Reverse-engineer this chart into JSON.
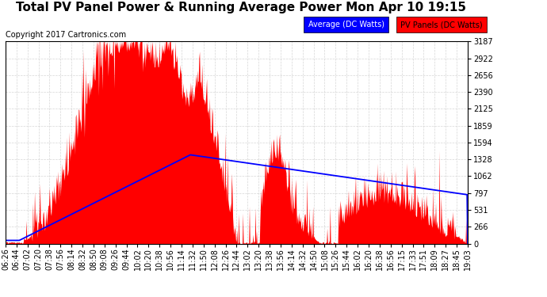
{
  "title": "Total PV Panel Power & Running Average Power Mon Apr 10 19:15",
  "copyright": "Copyright 2017 Cartronics.com",
  "legend_avg": "Average (DC Watts)",
  "legend_pv": "PV Panels (DC Watts)",
  "y_max": 3187.2,
  "y_min": 0.0,
  "y_ticks": [
    0.0,
    265.6,
    531.2,
    796.8,
    1062.4,
    1328.0,
    1593.6,
    1859.2,
    2124.8,
    2390.4,
    2656.0,
    2921.6,
    3187.2
  ],
  "x_labels": [
    "06:26",
    "06:44",
    "07:02",
    "07:20",
    "07:38",
    "07:56",
    "08:14",
    "08:32",
    "08:50",
    "09:08",
    "09:26",
    "09:44",
    "10:02",
    "10:20",
    "10:38",
    "10:56",
    "11:14",
    "11:32",
    "11:50",
    "12:08",
    "12:26",
    "12:44",
    "13:02",
    "13:20",
    "13:38",
    "13:56",
    "14:14",
    "14:32",
    "14:50",
    "15:08",
    "15:26",
    "15:44",
    "16:02",
    "16:20",
    "16:38",
    "16:56",
    "17:15",
    "17:33",
    "17:51",
    "18:09",
    "18:27",
    "18:45",
    "19:03"
  ],
  "background_color": "#ffffff",
  "plot_bg_color": "#ffffff",
  "grid_color": "#cccccc",
  "pv_color": "#ff0000",
  "avg_color": "#0000ff",
  "title_fontsize": 11,
  "copyright_fontsize": 7,
  "tick_fontsize": 7
}
